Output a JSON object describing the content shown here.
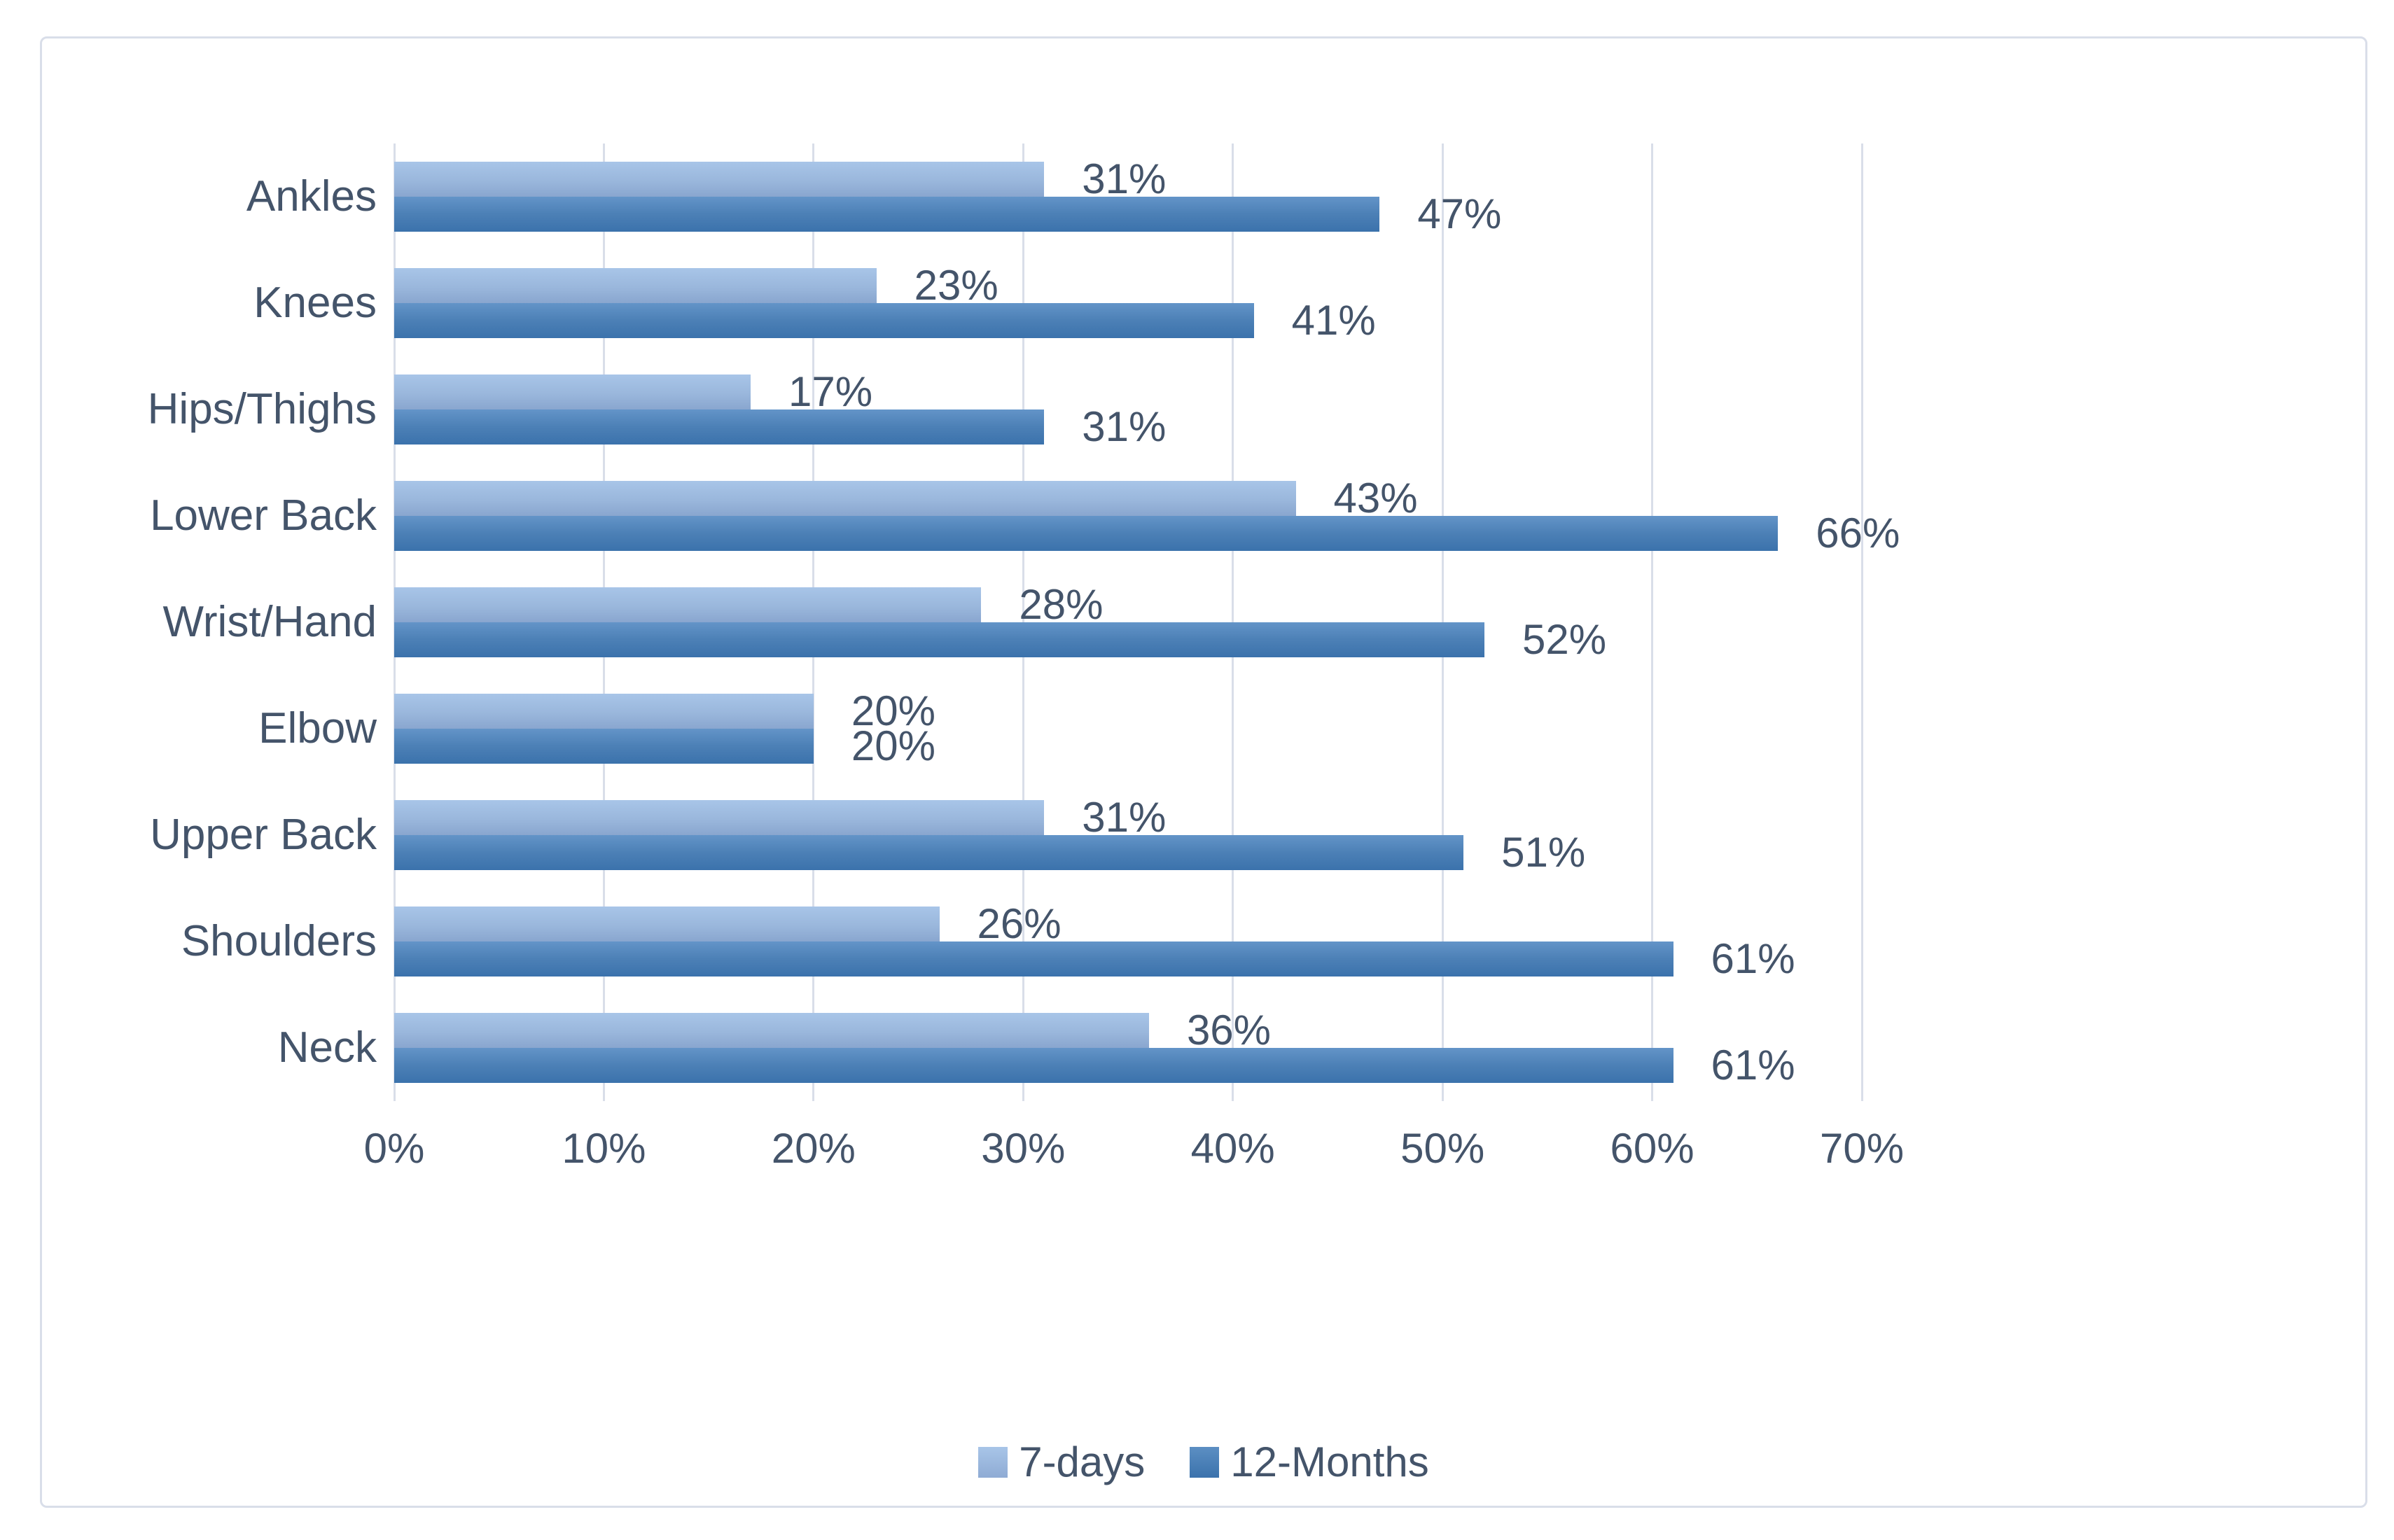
{
  "chart_data": {
    "type": "bar",
    "orientation": "horizontal",
    "title": "",
    "xlabel": "",
    "ylabel": "",
    "categories": [
      "Ankles",
      "Knees",
      "Hips/Thighs",
      "Lower Back",
      "Wrist/Hand",
      "Elbow",
      "Upper Back",
      "Shoulders",
      "Neck"
    ],
    "series": [
      {
        "name": "7-days",
        "values": [
          31,
          23,
          17,
          43,
          28,
          20,
          31,
          26,
          36
        ]
      },
      {
        "name": "12-Months",
        "values": [
          47,
          41,
          31,
          66,
          52,
          20,
          51,
          61,
          61
        ]
      }
    ],
    "value_label_suffix": "%",
    "x_ticks": [
      "0%",
      "10%",
      "20%",
      "30%",
      "40%",
      "50%",
      "60%",
      "70%"
    ],
    "xlim": [
      0,
      70
    ],
    "grid": "vertical-only",
    "legend_position": "bottom-center"
  },
  "legend": {
    "items": [
      {
        "label": "7-days"
      },
      {
        "label": "12-Months"
      }
    ]
  },
  "colors": {
    "series_light_top": "#A8C5E8",
    "series_light_bottom": "#89A6CF",
    "series_dark_top": "#6394C8",
    "series_dark_bottom": "#3B72AC",
    "gridline": "#D9DEE9",
    "chart_border": "#D9DEE9",
    "text": "#44546A",
    "background": "#FFFFFF"
  }
}
